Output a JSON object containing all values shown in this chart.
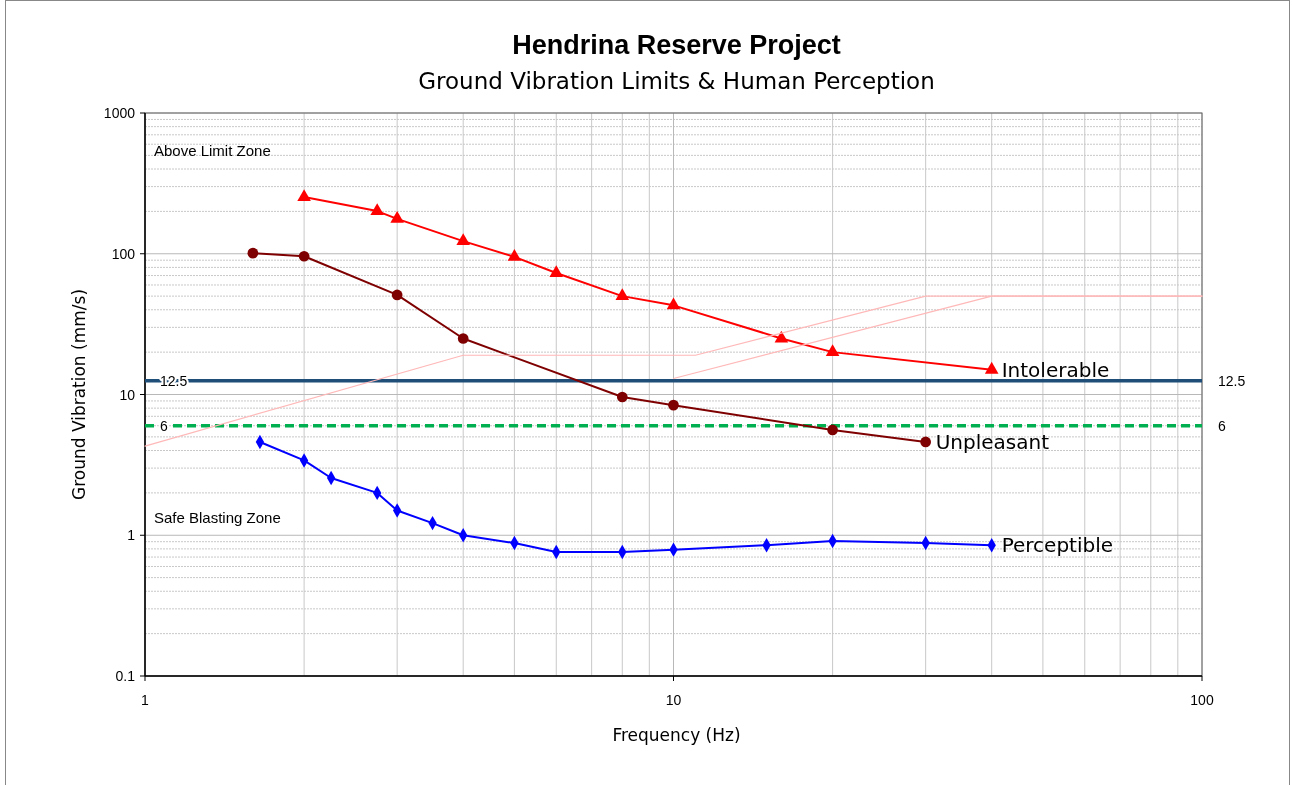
{
  "chart_data": {
    "type": "line",
    "title": "Hendrina Reserve Project",
    "subtitle": "Ground Vibration Limits & Human Perception",
    "xlabel": "Frequency (Hz)",
    "ylabel": "Ground Vibration (mm/s)",
    "log": "xy",
    "grid": true,
    "line_style": "solid",
    "xlim": [
      1,
      100
    ],
    "xticks": [
      1,
      10,
      100
    ],
    "ylim": [
      0.1,
      1000
    ],
    "yticks": [
      0.1,
      1,
      10,
      100,
      1000
    ],
    "series": [
      {
        "name": "Intolerable",
        "color": "#ff0000",
        "marker": "triangle",
        "x": [
          2,
          2.75,
          3,
          4,
          5,
          6,
          8,
          10,
          16,
          20,
          40
        ],
        "values": [
          253,
          201,
          177,
          123,
          95,
          73,
          50,
          43,
          25,
          20,
          15
        ]
      },
      {
        "name": "Unpleasant",
        "color": "#7f0000",
        "marker": "circle",
        "x": [
          1.6,
          2,
          3,
          4,
          8,
          10,
          20,
          30
        ],
        "values": [
          101,
          96,
          51,
          25,
          9.6,
          8.4,
          5.6,
          4.6
        ]
      },
      {
        "name": "Perceptible",
        "color": "#0000ff",
        "marker": "diamond",
        "x": [
          1.65,
          2,
          2.25,
          2.75,
          3,
          3.5,
          4,
          5,
          6,
          8,
          10,
          15,
          20,
          30,
          40
        ],
        "values": [
          4.6,
          3.4,
          2.55,
          2.0,
          1.5,
          1.22,
          1.0,
          0.88,
          0.76,
          0.76,
          0.79,
          0.85,
          0.91,
          0.88,
          0.85
        ]
      },
      {
        "color": "#ffb8b8",
        "marker": "none",
        "x": [
          1,
          4,
          11,
          30,
          100
        ],
        "values": [
          4.3,
          19,
          19,
          50,
          50
        ]
      },
      {
        "color": "#ffb8b8",
        "marker": "none",
        "x": [
          10,
          40,
          100
        ],
        "values": [
          13,
          50,
          50
        ]
      }
    ],
    "ref_lines": [
      {
        "axis": "y",
        "value": 12.5,
        "label": "12.5",
        "color": "#1f4e79",
        "line_style": "solid"
      },
      {
        "axis": "y",
        "value": 6,
        "label": "6",
        "color": "#00b050",
        "line_style": "dashed"
      }
    ],
    "annotations": [
      "Above Limit Zone",
      "Safe Blasting Zone"
    ]
  }
}
